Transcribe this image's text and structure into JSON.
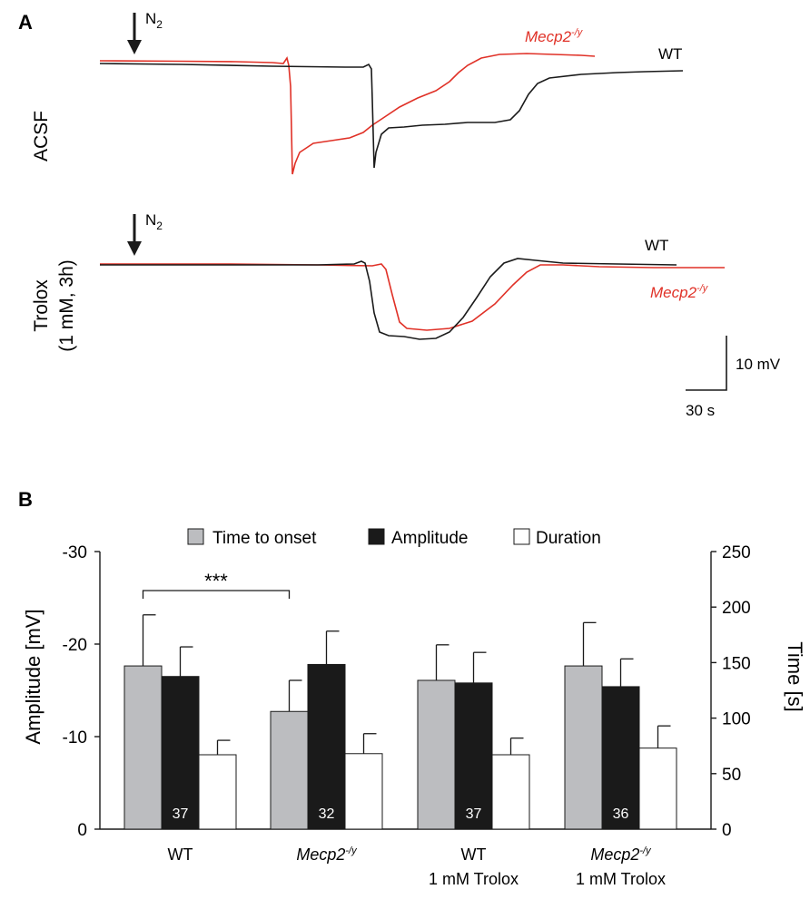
{
  "colors": {
    "wt": "#000000",
    "mecp2": "#e03127",
    "onset_bar": "#bcbdc0",
    "amplitude_bar": "#1a1a1a",
    "duration_bar": "#ffffff"
  },
  "panel_a": {
    "label": "A",
    "stimulus": "N",
    "stimulus_sub": "2",
    "scale_bar": {
      "voltage": "10 mV",
      "time": "30 s"
    },
    "acsf": {
      "row_label": "ACSF",
      "wt_label": "WT",
      "mecp2_label": "Mecp2",
      "mecp2_sup": "-/y"
    },
    "trolox": {
      "row_label_1": "Trolox",
      "row_label_2": "(1 mM, 3h)",
      "wt_label": "WT",
      "mecp2_label": "Mecp2",
      "mecp2_sup": "-/y"
    }
  },
  "chart_data": {
    "type": "bar",
    "panel_label": "B",
    "legend": [
      "Time to onset",
      "Amplitude",
      "Duration"
    ],
    "left_axis": {
      "label": "Amplitude [mV]",
      "ylim": [
        0,
        -30
      ],
      "ticks": [
        "-30",
        "-20",
        "-10",
        "0"
      ],
      "tick_values": [
        -30,
        -20,
        -10,
        0
      ]
    },
    "right_axis": {
      "label": "Time [s]",
      "ylim": [
        0,
        250
      ],
      "ticks": [
        "250",
        "200",
        "150",
        "100",
        "50",
        "0"
      ],
      "tick_values": [
        250,
        200,
        150,
        100,
        50,
        0
      ]
    },
    "groups": [
      {
        "name": "WT",
        "name_sup": "",
        "italic": false,
        "line2": "",
        "n": "37",
        "onset": 147,
        "onset_err": 46,
        "amplitude": -16.5,
        "amplitude_err": 3.2,
        "duration": 67,
        "duration_err": 13
      },
      {
        "name": "Mecp2",
        "name_sup": "-/y",
        "italic": true,
        "line2": "",
        "n": "32",
        "onset": 106,
        "onset_err": 28,
        "amplitude": -17.8,
        "amplitude_err": 3.6,
        "duration": 68,
        "duration_err": 18
      },
      {
        "name": "WT",
        "name_sup": "",
        "italic": false,
        "line2": "1 mM Trolox",
        "n": "37",
        "onset": 134,
        "onset_err": 32,
        "amplitude": -15.8,
        "amplitude_err": 3.3,
        "duration": 67,
        "duration_err": 15
      },
      {
        "name": "Mecp2",
        "name_sup": "-/y",
        "italic": true,
        "line2": "1 mM Trolox",
        "n": "36",
        "onset": 147,
        "onset_err": 39,
        "amplitude": -15.4,
        "amplitude_err": 3.0,
        "duration": 73,
        "duration_err": 20
      }
    ],
    "significance": {
      "label": "***",
      "between": [
        0,
        1
      ]
    }
  }
}
